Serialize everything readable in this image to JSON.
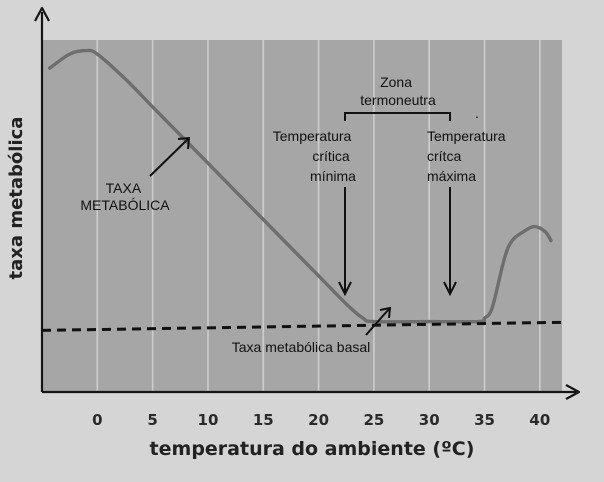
{
  "chart_data": {
    "type": "line",
    "xlabel": "temperatura do ambiente (ºC)",
    "ylabel": "taxa metabólica",
    "x_ticks": [
      "0",
      "5",
      "10",
      "15",
      "20",
      "25",
      "30",
      "35",
      "40"
    ],
    "xlim": [
      -5,
      42
    ],
    "ylim": [
      0,
      100
    ],
    "grid": true,
    "series": [
      {
        "name": "TAXA METABÓLICA",
        "style": "solid",
        "color": "#6e6e6e",
        "x": [
          -4.3,
          -2.5,
          -1.0,
          0,
          2.5,
          5,
          7.5,
          10,
          12.5,
          15,
          17.5,
          20,
          22.5,
          24,
          25,
          30,
          34.5,
          35,
          35.7,
          36.8,
          37.5,
          38.5,
          39.5,
          40.5,
          41
        ],
        "y": [
          92,
          96,
          97,
          96,
          89,
          81,
          73,
          65,
          57,
          49,
          41,
          33,
          25,
          21,
          20,
          20,
          20,
          21,
          24,
          38,
          43,
          45.5,
          47,
          45.5,
          43
        ]
      },
      {
        "name": "Taxa metabólica basal",
        "style": "dashed",
        "color": "#111111",
        "x": [
          -5,
          42
        ],
        "y": [
          17.5,
          19.8
        ]
      }
    ],
    "annotations": {
      "taxa": [
        "TAXA",
        "METABÓLICA"
      ],
      "basal": "Taxa metabólica basal",
      "zona": [
        "Zona",
        "termoneutra"
      ],
      "min": [
        "Temperatura",
        "crítica",
        "mínima"
      ],
      "max": [
        "Temperatura",
        "crítca",
        "máxima"
      ],
      "dot": "."
    },
    "colors": {
      "plot_background": "#a6a6a6",
      "page_background": "#d5d5d5",
      "grid": "#cdcdcd",
      "axis": "#151515"
    }
  }
}
